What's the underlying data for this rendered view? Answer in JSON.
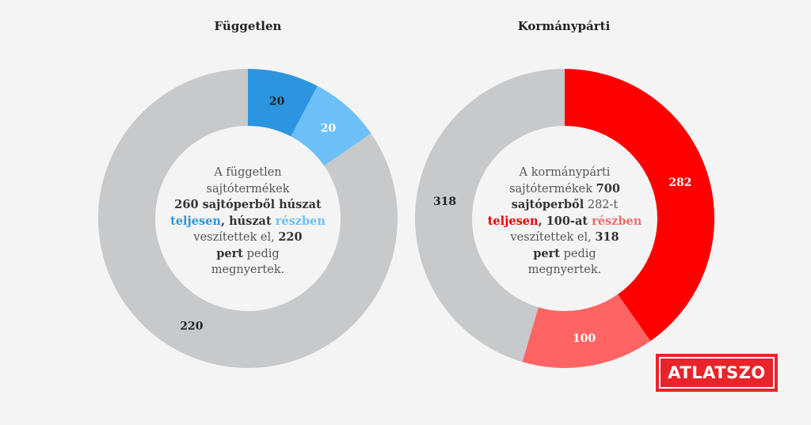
{
  "chart_data": [
    {
      "type": "pie",
      "title": "Független",
      "categories": [
        "teljesen",
        "részben",
        "megnyertek"
      ],
      "values": [
        20,
        20,
        220
      ],
      "colors": [
        "#2b95e0",
        "#6cc0f7",
        "#c8c9cb"
      ],
      "center_text": {
        "l1": "A független",
        "l2": "sajtótermékek",
        "l3": "260 sajtóperből húszat",
        "l4a": "teljesen",
        "l4b": ", húszat ",
        "l4c": "részben",
        "l5a": "veszítettek el, ",
        "l5b": "220",
        "l6a": "pert",
        "l6b": " pedig",
        "l7": "megnyertek."
      }
    },
    {
      "type": "pie",
      "title": "Kormánypárti",
      "categories": [
        "teljesen",
        "részben",
        "megnyertek"
      ],
      "values": [
        282,
        100,
        318
      ],
      "colors": [
        "#ff0000",
        "#ff6464",
        "#c8c9cb"
      ],
      "center_text": {
        "l1": "A kormánypárti",
        "l2a": "sajtótermékek ",
        "l2b": "700",
        "l3a": "sajtóperből",
        "l3b": " 282-t",
        "l4a": "teljesen",
        "l4b": ", 100-at ",
        "l4c": "részben",
        "l5a": "veszítettek el, ",
        "l5b": "318",
        "l6a": "pert",
        "l6b": " pedig",
        "l7": "megnyertek."
      }
    }
  ],
  "logo": {
    "text": "ATLATSZO",
    "color": "#e8242a"
  }
}
